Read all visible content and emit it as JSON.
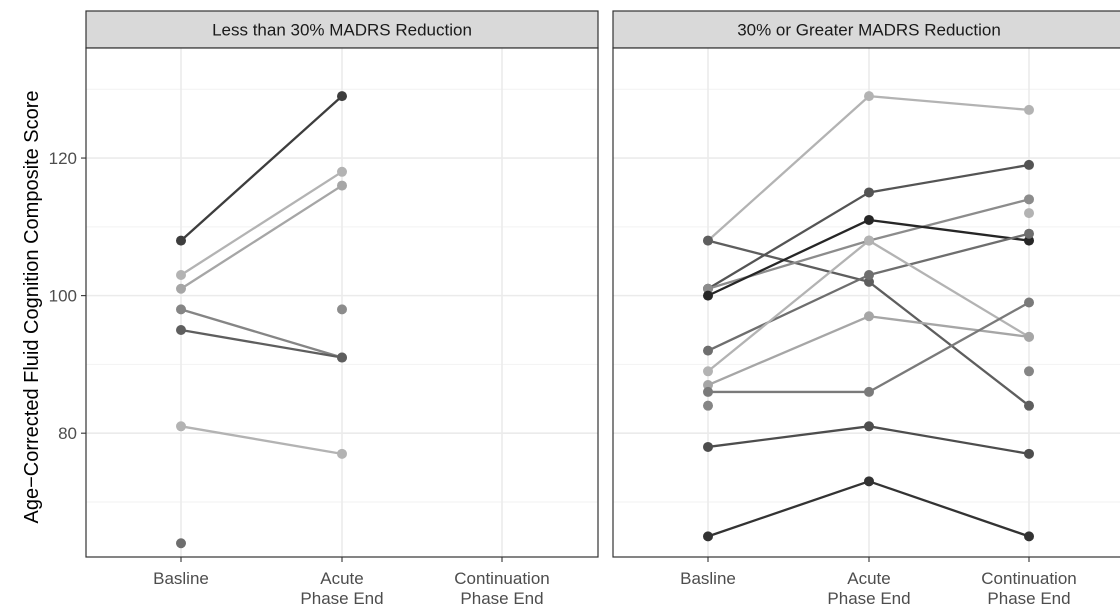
{
  "chart_data": {
    "type": "line",
    "ylabel": "Age−Corrected Fluid Cognition Composite Score",
    "xlabel": "",
    "categories": [
      "Basline",
      "Acute\nPhase End",
      "Continuation\nPhase End"
    ],
    "ylim": [
      62,
      136
    ],
    "yticks": [
      80,
      100,
      120
    ],
    "grid": true,
    "legend": "none",
    "panels": [
      {
        "title": "Less than 30% MADRS Reduction",
        "series": [
          {
            "values": [
              108,
              129,
              null
            ],
            "color": "#3d3d3d"
          },
          {
            "values": [
              103,
              118,
              null
            ],
            "color": "#b3b3b3"
          },
          {
            "values": [
              101,
              116,
              null
            ],
            "color": "#a6a6a6"
          },
          {
            "values": [
              98,
              91,
              null
            ],
            "color": "#858585"
          },
          {
            "values": [
              95,
              91,
              null
            ],
            "color": "#5e5e5e"
          },
          {
            "values": [
              81,
              77,
              null
            ],
            "color": "#b3b3b3"
          },
          {
            "values": [
              null,
              98,
              null
            ],
            "color": "#8c8c8c"
          },
          {
            "values": [
              64,
              null,
              null
            ],
            "color": "#6e6e6e"
          }
        ]
      },
      {
        "title": "30% or Greater MADRS Reduction",
        "series": [
          {
            "values": [
              108,
              129,
              127
            ],
            "color": "#b3b3b3"
          },
          {
            "values": [
              108,
              102,
              84
            ],
            "color": "#5e5e5e"
          },
          {
            "values": [
              101,
              115,
              119
            ],
            "color": "#545454"
          },
          {
            "values": [
              101,
              108,
              114
            ],
            "color": "#8c8c8c"
          },
          {
            "values": [
              100,
              111,
              108
            ],
            "color": "#262626"
          },
          {
            "values": [
              92,
              103,
              109
            ],
            "color": "#6e6e6e"
          },
          {
            "values": [
              89,
              108,
              94
            ],
            "color": "#b3b3b3"
          },
          {
            "values": [
              87,
              97,
              94
            ],
            "color": "#a6a6a6"
          },
          {
            "values": [
              86,
              86,
              99
            ],
            "color": "#7a7a7a"
          },
          {
            "values": [
              84,
              null,
              89
            ],
            "color": "#858585"
          },
          {
            "values": [
              78,
              81,
              77
            ],
            "color": "#4d4d4d"
          },
          {
            "values": [
              65,
              73,
              65
            ],
            "color": "#333333"
          },
          {
            "values": [
              null,
              null,
              112
            ],
            "color": "#b3b3b3"
          }
        ]
      }
    ]
  },
  "colors": {
    "strip_bg": "#d9d9d9",
    "panel_border": "#333333",
    "grid_major": "#ebebeb",
    "grid_minor": "#f2f2f2"
  }
}
